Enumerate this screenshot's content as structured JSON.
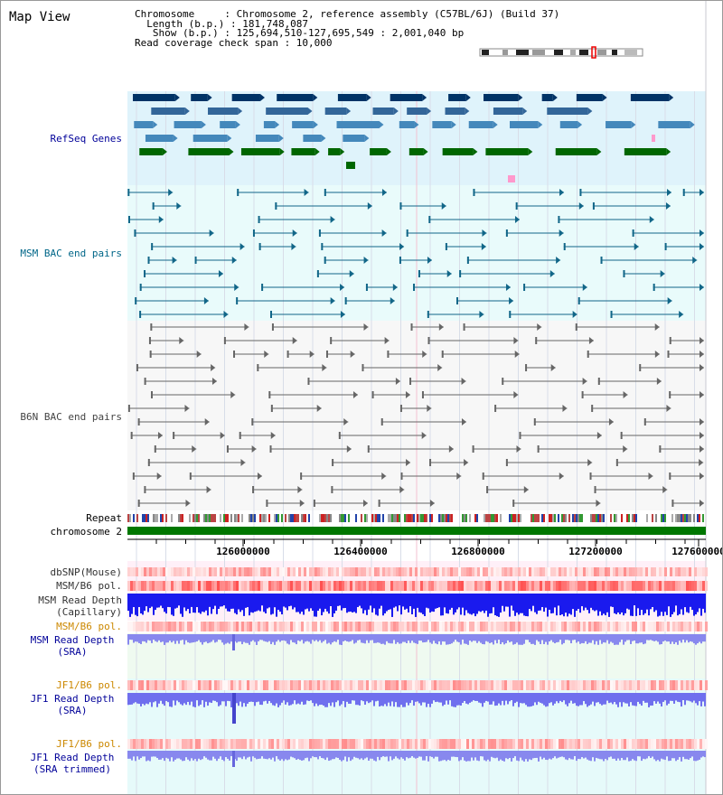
{
  "title": "Map View",
  "info": {
    "chromosome": "Chromosome     : Chromosome 2, reference assembly (C57BL/6J) (Build 37)",
    "length": "  Length (b.p.) : 181,748,087",
    "show": "   Show (b.p.) : 125,694,510-127,695,549 : 2,001,040 bp",
    "coverage": "Read coverage check span : 10,000"
  },
  "tracks": {
    "refseq": "RefSeq Genes",
    "msm_bac": "MSM BAC end pairs",
    "b6n_bac": "B6N BAC end pairs",
    "repeat": "Repeat",
    "chromosome": "chromosome 2",
    "dbsnp": "dbSNP(Mouse)",
    "msm_b6_pol": "MSM/B6 pol.",
    "msm_read_depth_cap": "MSM Read Depth\n(Capillary)",
    "msm_b6_pol_2": "MSM/B6 pol.",
    "msm_read_depth_sra": "MSM Read Depth\n(SRA)",
    "jf1_b6_pol": "JF1/B6 pol.",
    "jf1_read_depth_sra": "JF1 Read Depth\n(SRA)",
    "jf1_b6_pol_2": "JF1/B6 pol.",
    "jf1_read_depth_trim": "JF1 Read Depth\n(SRA trimmed)"
  },
  "axis": {
    "ticks": [
      "126000000",
      "126400000",
      "126800000",
      "127200000",
      "127600000"
    ]
  },
  "colors": {
    "refseq_dark": "#003366",
    "refseq_mid": "#4488bb",
    "refseq_green": "#006600",
    "msm_label": "#006688",
    "b6n_label": "#555555",
    "track_blue": "#000099",
    "track_orange": "#cc8800"
  }
}
